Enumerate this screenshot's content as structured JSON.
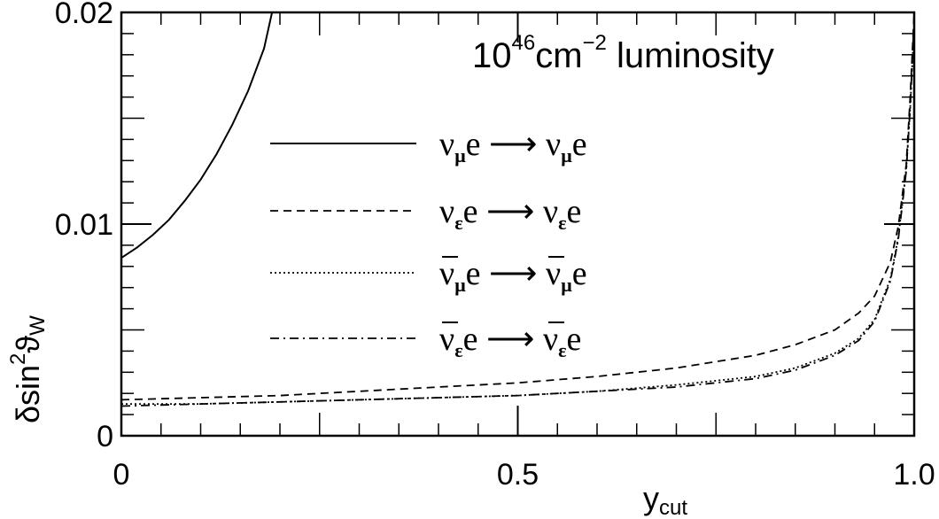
{
  "chart_data": {
    "type": "line",
    "xlabel": {
      "main": "y",
      "sub": "cut"
    },
    "ylabel": {
      "main": "δsin",
      "sup": "2",
      "theta": "ϑ",
      "sub": "W"
    },
    "xlim": [
      0,
      1.0
    ],
    "ylim": [
      0,
      0.02
    ],
    "x_ticks": [
      {
        "value": 0,
        "label": "0"
      },
      {
        "value": 0.5,
        "label": "0.5"
      },
      {
        "value": 1.0,
        "label": "1.0"
      }
    ],
    "y_ticks": [
      {
        "value": 0,
        "label": "0"
      },
      {
        "value": 0.01,
        "label": "0.01"
      },
      {
        "value": 0.02,
        "label": "0.02"
      }
    ],
    "annotation": {
      "base": "10",
      "exp": "46",
      "unit": "cm",
      "unit_exp": "−2",
      "rest": " luminosity"
    },
    "grid": false,
    "legend_position": "center",
    "series": [
      {
        "name": "ν_μ e → ν_μ e",
        "label": {
          "nu": "ν",
          "sub": "μ",
          "mid": "e ⟶ ",
          "nu2": "ν",
          "sub2": "μ",
          "end": "e",
          "bar": false
        },
        "style": "solid",
        "x": [
          0,
          0.02,
          0.04,
          0.06,
          0.08,
          0.1,
          0.12,
          0.14,
          0.16,
          0.18,
          0.19
        ],
        "y": [
          0.0084,
          0.0089,
          0.0095,
          0.0102,
          0.0111,
          0.0121,
          0.0133,
          0.0147,
          0.0163,
          0.0183,
          0.02
        ]
      },
      {
        "name": "ν_ε e → ν_ε e",
        "label": {
          "nu": "ν",
          "sub": "ε",
          "mid": "e ⟶ ",
          "nu2": "ν",
          "sub2": "ε",
          "end": "e",
          "bar": false
        },
        "style": "dashed",
        "x": [
          0,
          0.1,
          0.2,
          0.3,
          0.4,
          0.5,
          0.6,
          0.7,
          0.8,
          0.85,
          0.9,
          0.93,
          0.95,
          0.97,
          0.98,
          0.99,
          0.995,
          1.0
        ],
        "y": [
          0.0017,
          0.0018,
          0.0019,
          0.0021,
          0.0023,
          0.0025,
          0.0028,
          0.0032,
          0.0038,
          0.0043,
          0.005,
          0.0058,
          0.0066,
          0.0082,
          0.0099,
          0.0128,
          0.016,
          0.02
        ]
      },
      {
        "name": "ν̄_μ e → ν̄_μ e",
        "label": {
          "nu": "ν",
          "sub": "μ",
          "mid": "e ⟶ ",
          "nu2": "ν",
          "sub2": "μ",
          "end": "e",
          "bar": true
        },
        "style": "dotted",
        "x": [
          0,
          0.1,
          0.2,
          0.3,
          0.4,
          0.5,
          0.6,
          0.7,
          0.8,
          0.85,
          0.9,
          0.93,
          0.95,
          0.97,
          0.98,
          0.99,
          0.995,
          1.0
        ],
        "y": [
          0.0015,
          0.0015,
          0.0016,
          0.0017,
          0.0018,
          0.0019,
          0.0021,
          0.0024,
          0.0028,
          0.0032,
          0.0039,
          0.0046,
          0.0055,
          0.0074,
          0.0094,
          0.0126,
          0.0155,
          0.0195
        ]
      },
      {
        "name": "ν̄_ε e → ν̄_ε e",
        "label": {
          "nu": "ν",
          "sub": "ε",
          "mid": "e ⟶ ",
          "nu2": "ν",
          "sub2": "ε",
          "end": "e",
          "bar": true
        },
        "style": "dashdot",
        "x": [
          0,
          0.1,
          0.2,
          0.3,
          0.4,
          0.5,
          0.6,
          0.7,
          0.8,
          0.85,
          0.9,
          0.93,
          0.95,
          0.97,
          0.98,
          0.99,
          0.995,
          1.0
        ],
        "y": [
          0.0014,
          0.0015,
          0.0016,
          0.0017,
          0.0018,
          0.0019,
          0.0021,
          0.0023,
          0.0027,
          0.0031,
          0.0038,
          0.0045,
          0.0054,
          0.0073,
          0.0093,
          0.0125,
          0.0155,
          0.0198
        ]
      }
    ]
  }
}
